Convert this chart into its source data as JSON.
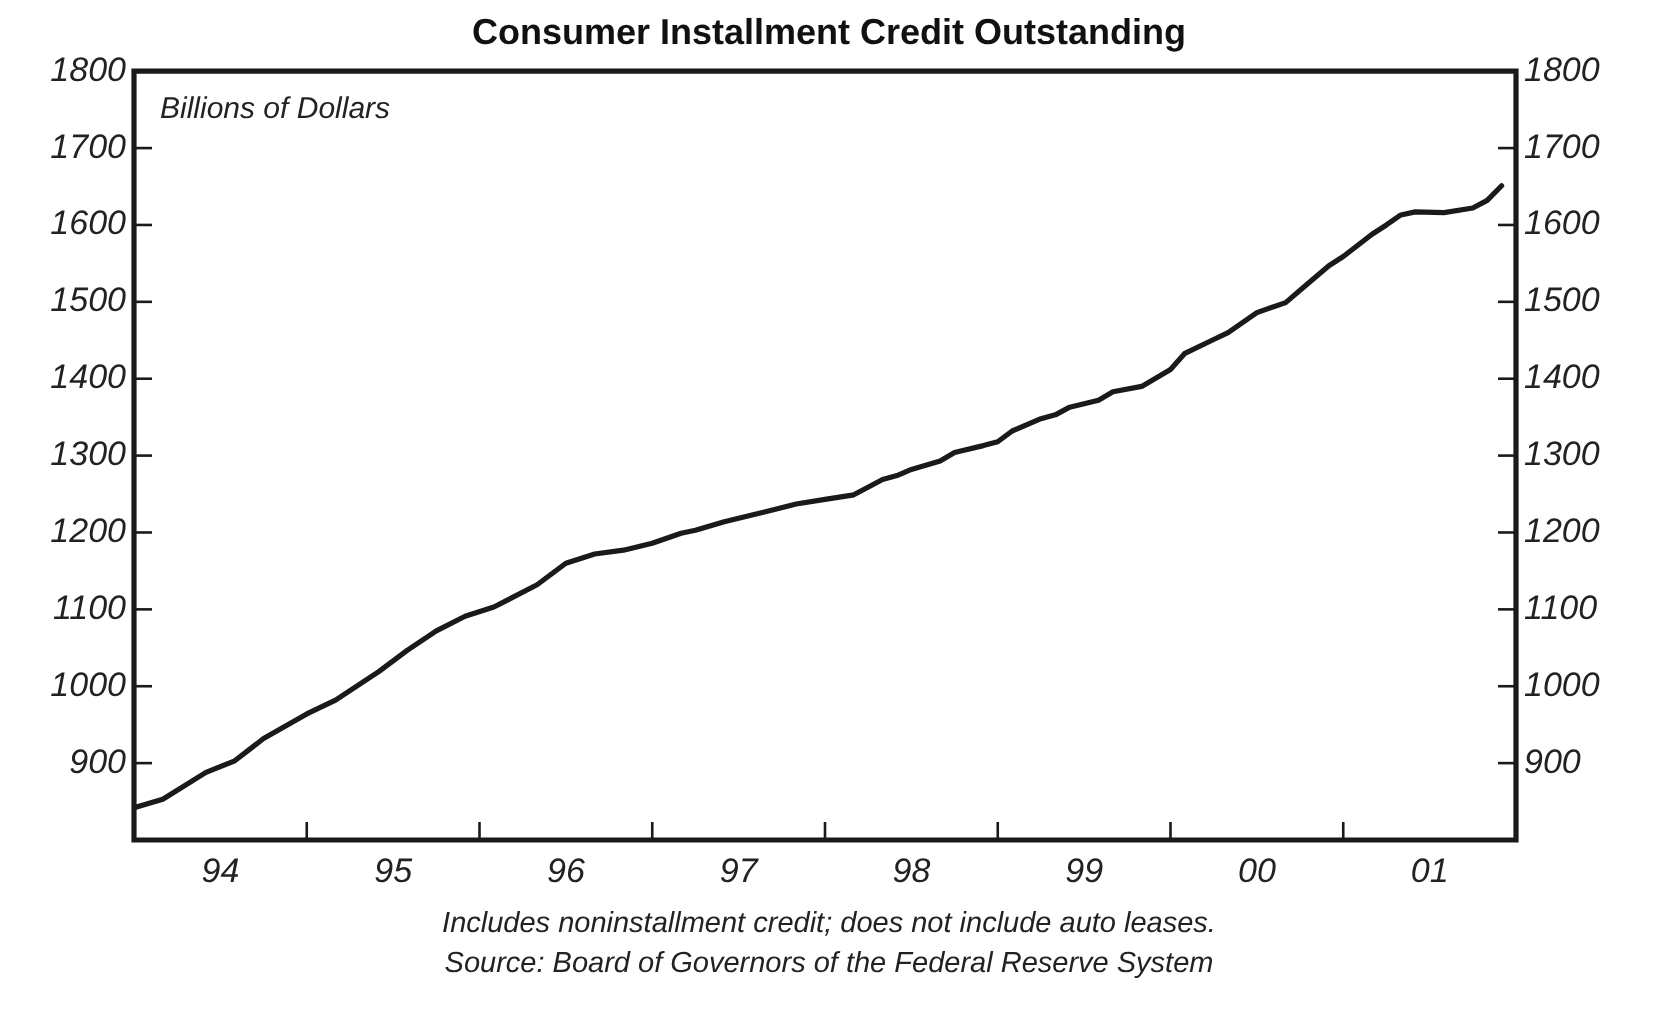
{
  "chart_data": {
    "type": "line",
    "title": "Consumer Installment Credit Outstanding",
    "ylabel": "Billions of Dollars",
    "annotations": [
      "Includes noninstallment credit; does not include auto leases.",
      "Source: Board of Governors of the Federal Reserve System"
    ],
    "x": [
      "1994-01",
      "1994-03",
      "1994-06",
      "1994-08",
      "1994-10",
      "1995-01",
      "1995-03",
      "1995-06",
      "1995-08",
      "1995-10",
      "1995-12",
      "1996-02",
      "1996-05",
      "1996-07",
      "1996-09",
      "1996-11",
      "1997-01",
      "1997-03",
      "1997-04",
      "1997-06",
      "1997-08",
      "1997-11",
      "1998-01",
      "1998-03",
      "1998-05",
      "1998-06",
      "1998-07",
      "1998-09",
      "1998-10",
      "1998-12",
      "1999-01",
      "1999-02",
      "1999-04",
      "1999-05",
      "1999-06",
      "1999-08",
      "1999-09",
      "1999-11",
      "2000-01",
      "2000-02",
      "2000-04",
      "2000-05",
      "2000-07",
      "2000-09",
      "2000-10",
      "2000-12",
      "2001-01",
      "2001-03",
      "2001-04",
      "2001-05",
      "2001-06",
      "2001-08",
      "2001-10",
      "2001-11",
      "2001-12"
    ],
    "series": [
      {
        "color": "#1a1a1a",
        "values": [
          842,
          853,
          888,
          903,
          932,
          964,
          982,
          1019,
          1047,
          1072,
          1091,
          1103,
          1132,
          1160,
          1172,
          1177,
          1186,
          1199,
          1203,
          1214,
          1223,
          1237,
          1243,
          1249,
          1269,
          1274,
          1282,
          1293,
          1304,
          1313,
          1318,
          1332,
          1348,
          1353,
          1363,
          1372,
          1383,
          1390,
          1412,
          1433,
          1451,
          1460,
          1486,
          1499,
          1515,
          1547,
          1559,
          1588,
          1600,
          1613,
          1617,
          1616,
          1622,
          1632,
          1651
        ]
      }
    ],
    "xlim": [
      "1994-01",
      "2002-01"
    ],
    "xticks": [
      {
        "value": "1995-01",
        "label": null
      },
      {
        "value": "1996-01",
        "label": null
      },
      {
        "value": "1997-01",
        "label": null
      },
      {
        "value": "1998-01",
        "label": null
      },
      {
        "value": "1999-01",
        "label": null
      },
      {
        "value": "2000-01",
        "label": null
      },
      {
        "value": "2001-01",
        "label": null
      },
      {
        "value": "1994-07",
        "label": "94"
      },
      {
        "value": "1995-07",
        "label": "95"
      },
      {
        "value": "1996-07",
        "label": "96"
      },
      {
        "value": "1997-07",
        "label": "97"
      },
      {
        "value": "1998-07",
        "label": "98"
      },
      {
        "value": "1999-07",
        "label": "99"
      },
      {
        "value": "2000-07",
        "label": "00"
      },
      {
        "value": "2001-07",
        "label": "01"
      }
    ],
    "ylim": [
      800,
      1800
    ],
    "yticks": [
      900,
      1000,
      1100,
      1200,
      1300,
      1400,
      1500,
      1600,
      1700,
      1800
    ],
    "y2lim": [
      800,
      1800
    ],
    "y2ticks": [
      900,
      1000,
      1100,
      1200,
      1300,
      1400,
      1500,
      1600,
      1700,
      1800
    ],
    "grid": false,
    "legend": false
  }
}
